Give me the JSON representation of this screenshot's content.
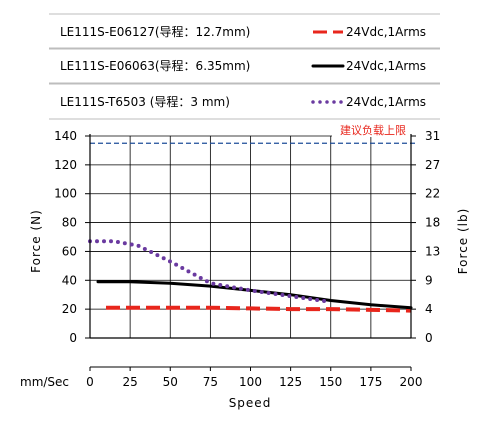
{
  "chart_data": {
    "type": "line",
    "legend_placement": "top",
    "legend": [
      {
        "model": "LE111S-E06127(导程：12.7mm)",
        "condition": "24Vdc,1Arms",
        "color": "#e8261c",
        "style": "dashed"
      },
      {
        "model": "LE111S-E06063(导程：6.35mm)",
        "condition": "24Vdc,1Arms",
        "color": "#000000",
        "style": "solid"
      },
      {
        "model": "LE111S-T6503 (导程：3 mm)",
        "condition": "24Vdc,1Arms",
        "color": "#6a3aa0",
        "style": "dotted"
      }
    ],
    "x_axis": {
      "label": "Speed",
      "unit_label": "mm/Sec",
      "range": [
        0,
        200
      ],
      "ticks": [
        0,
        25,
        50,
        75,
        100,
        125,
        150,
        175,
        200
      ]
    },
    "y_axis_left": {
      "label": "Force (N)",
      "range": [
        0,
        140
      ],
      "ticks": [
        0,
        20,
        40,
        60,
        80,
        100,
        120,
        140
      ]
    },
    "y_axis_right": {
      "label": "Force (lb)",
      "ticks": [
        0,
        4,
        9,
        13,
        18,
        22,
        27,
        31
      ]
    },
    "grid": true,
    "limit_line": {
      "label": "建议负载上限",
      "value": 135,
      "color": "#1f4e9a"
    },
    "series": [
      {
        "color": "#e8261c",
        "style": "dashed",
        "x": [
          10,
          25,
          50,
          75,
          100,
          125,
          150,
          175,
          200
        ],
        "y": [
          21,
          21,
          21,
          21,
          20.5,
          20,
          20,
          19.5,
          19
        ]
      },
      {
        "color": "#000000",
        "style": "solid",
        "x": [
          5,
          25,
          50,
          75,
          100,
          125,
          150,
          175,
          200
        ],
        "y": [
          39,
          39,
          38,
          36,
          33,
          30,
          26,
          23,
          21
        ]
      },
      {
        "color": "#6a3aa0",
        "style": "dotted",
        "x": [
          0,
          15,
          30,
          50,
          75,
          100,
          125,
          150
        ],
        "y": [
          67,
          67,
          64,
          53,
          38,
          33,
          29,
          25
        ]
      }
    ]
  }
}
